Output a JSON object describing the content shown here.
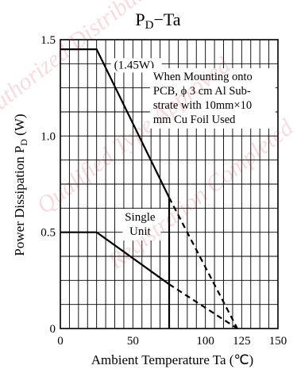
{
  "chart_data": {
    "type": "line",
    "title": "P",
    "title_sub": "D",
    "title_suffix": "−Ta",
    "xlabel": "Ambient Temperature  Ta  (℃)",
    "ylabel": "Power Dissipation  P",
    "ylabel_sub": "D",
    "ylabel_suffix": "  (W)",
    "xlim": [
      0,
      150
    ],
    "ylim": [
      0,
      1.5
    ],
    "x_ticks": [
      0,
      50,
      100,
      125,
      150
    ],
    "x_tick_labels": [
      "0",
      "50",
      "100",
      "125",
      "150"
    ],
    "y_ticks": [
      0,
      0.5,
      1.0,
      1.5
    ],
    "y_tick_labels": [
      "0",
      "0.5",
      "1.0",
      "1.5"
    ],
    "grid": true,
    "grid_x_step": 6.25,
    "grid_y_step": 0.125,
    "line_color": "#000000",
    "series": [
      {
        "name": "(1.45W)",
        "solid": [
          [
            0,
            1.45
          ],
          [
            25,
            1.45
          ],
          [
            75,
            0.68
          ]
        ],
        "dashed": [
          [
            75,
            0.68
          ],
          [
            122,
            0.0
          ]
        ]
      },
      {
        "name": "Single Unit",
        "solid": [
          [
            0,
            0.5
          ],
          [
            25,
            0.5
          ],
          [
            75,
            0.23
          ]
        ],
        "dashed": [
          [
            75,
            0.23
          ],
          [
            122,
            0.0
          ]
        ]
      }
    ],
    "derating_marker_x": 75,
    "annotations": [
      {
        "text": "(1.45W)",
        "x": 37,
        "y": 1.35
      },
      {
        "text_lines": [
          "When Mounting onto",
          "PCB, ϕ 3 cm Al Sub-",
          "strate with 10mm×10",
          "mm Cu Foil Used"
        ],
        "x": 64,
        "y": 1.29
      },
      {
        "text_lines": [
          "Single",
          "Unit"
        ],
        "x": 44,
        "y": 0.56
      }
    ]
  },
  "watermark": [
    "Authorized Distributor",
    "Qualified Type Approved",
    "Registration Completed"
  ],
  "watermark_color": "#c81e3c"
}
